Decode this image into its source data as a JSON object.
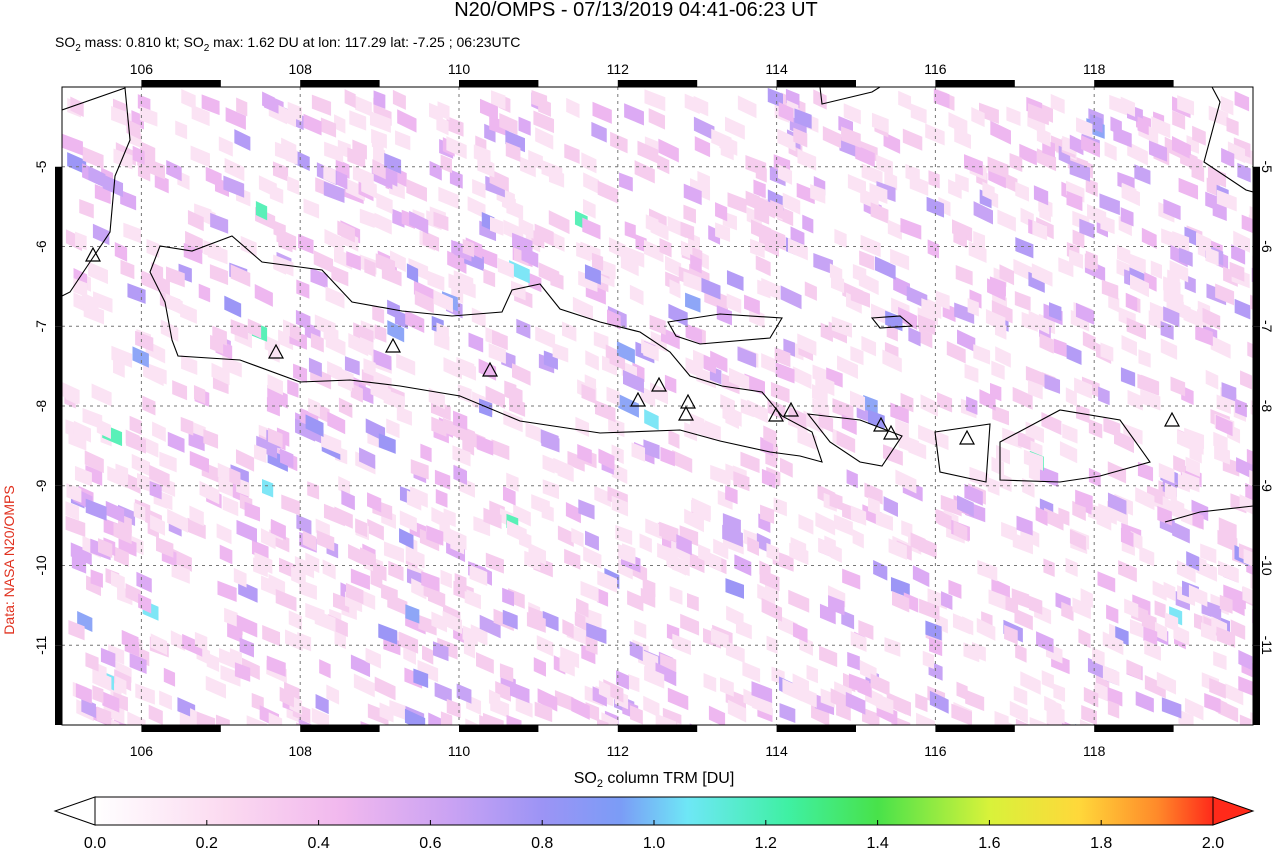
{
  "map": {
    "title": "N20/OMPS - 07/13/2019 04:41-06:23 UT",
    "subtitle": [
      "SO",
      "2",
      " mass: 0.810 kt; SO",
      "2",
      " max: 1.62 DU at lon: 117.29 lat: -7.25 ; 06:23UTC"
    ],
    "credit": "Data: NASA N20/OMPS",
    "lon_range": [
      105,
      120
    ],
    "lat_range": [
      -4,
      -12
    ],
    "lon_ticks": [
      106,
      108,
      110,
      112,
      114,
      116,
      118
    ],
    "lat_ticks": [
      -5,
      -6,
      -7,
      -8,
      -9,
      -10,
      -11
    ],
    "colorbar": {
      "label": [
        "SO",
        "2",
        " column TRM [DU]"
      ],
      "range": [
        0,
        2
      ],
      "ticks": [
        {
          "value": 0,
          "label": "0.0"
        },
        {
          "value": 0.2,
          "label": "0.2"
        },
        {
          "value": 0.4,
          "label": "0.4"
        },
        {
          "value": 0.6,
          "label": "0.6"
        },
        {
          "value": 0.8,
          "label": "0.8"
        },
        {
          "value": 1,
          "label": "1.0"
        },
        {
          "value": 1.2,
          "label": "1.2"
        },
        {
          "value": 1.4,
          "label": "1.4"
        },
        {
          "value": 1.6,
          "label": "1.6"
        },
        {
          "value": 1.8,
          "label": "1.8"
        },
        {
          "value": 2,
          "label": "2.0"
        }
      ]
    }
  }
}
